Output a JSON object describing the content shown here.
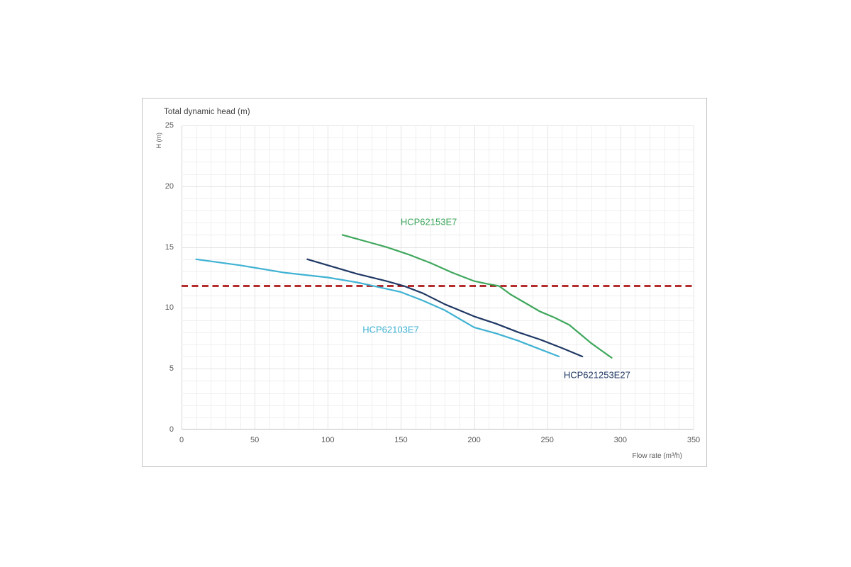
{
  "chart_data": {
    "type": "line",
    "title": "Total dynamic head (m)",
    "y_axis_unit": "H (m)",
    "x_axis_label": "Flow rate (m³/h)",
    "xlabel": "Flow rate (m³/h)",
    "ylabel": "H (m)",
    "xlim": [
      0,
      350
    ],
    "ylim": [
      0,
      25
    ],
    "x_ticks": [
      0,
      50,
      100,
      150,
      200,
      250,
      300,
      350
    ],
    "y_ticks": [
      0,
      5,
      10,
      15,
      20,
      25
    ],
    "x_minor_step": 10,
    "y_minor_step": 1,
    "grid": "on",
    "legend_position": "inline-labels",
    "series": [
      {
        "name": "HCP62103E7",
        "color": "#3fb2d3",
        "label_pos": [
          143,
          8.2
        ],
        "points": [
          [
            10,
            14.0
          ],
          [
            40,
            13.5
          ],
          [
            70,
            12.9
          ],
          [
            100,
            12.5
          ],
          [
            120,
            12.1
          ],
          [
            135,
            11.7
          ],
          [
            150,
            11.3
          ],
          [
            165,
            10.6
          ],
          [
            180,
            9.8
          ],
          [
            200,
            8.4
          ],
          [
            215,
            7.9
          ],
          [
            230,
            7.3
          ],
          [
            245,
            6.6
          ],
          [
            258,
            6.0
          ]
        ]
      },
      {
        "name": "HCP621253E27",
        "color": "#1f3864",
        "label_pos": [
          284,
          4.5
        ],
        "points": [
          [
            86,
            14.0
          ],
          [
            100,
            13.5
          ],
          [
            120,
            12.8
          ],
          [
            140,
            12.2
          ],
          [
            152,
            11.8
          ],
          [
            165,
            11.2
          ],
          [
            180,
            10.3
          ],
          [
            200,
            9.3
          ],
          [
            215,
            8.7
          ],
          [
            230,
            8.0
          ],
          [
            245,
            7.4
          ],
          [
            260,
            6.7
          ],
          [
            274,
            6.0
          ]
        ]
      },
      {
        "name": "HCP62153E7",
        "color": "#3fa75c",
        "label_pos": [
          169,
          17.1
        ],
        "points": [
          [
            110,
            16.0
          ],
          [
            125,
            15.5
          ],
          [
            140,
            15.0
          ],
          [
            155,
            14.4
          ],
          [
            170,
            13.7
          ],
          [
            185,
            12.9
          ],
          [
            200,
            12.2
          ],
          [
            210,
            11.95
          ],
          [
            217,
            11.8
          ],
          [
            225,
            11.1
          ],
          [
            235,
            10.4
          ],
          [
            245,
            9.7
          ],
          [
            255,
            9.2
          ],
          [
            265,
            8.6
          ],
          [
            272,
            7.9
          ],
          [
            280,
            7.1
          ],
          [
            287,
            6.5
          ],
          [
            294,
            5.9
          ]
        ]
      }
    ],
    "reference_line": {
      "y": 11.8,
      "color": "#a30000",
      "style": "dashed"
    },
    "colors": {
      "grid_minor": "#efefef",
      "grid_major": "#e3e3e3",
      "axis_line": "#bfbfbf",
      "left_axis_line": "#d6d6d6",
      "tick_text": "#595959",
      "title_text": "#3f3f3f",
      "panel_border": "#c6c6c6"
    }
  }
}
